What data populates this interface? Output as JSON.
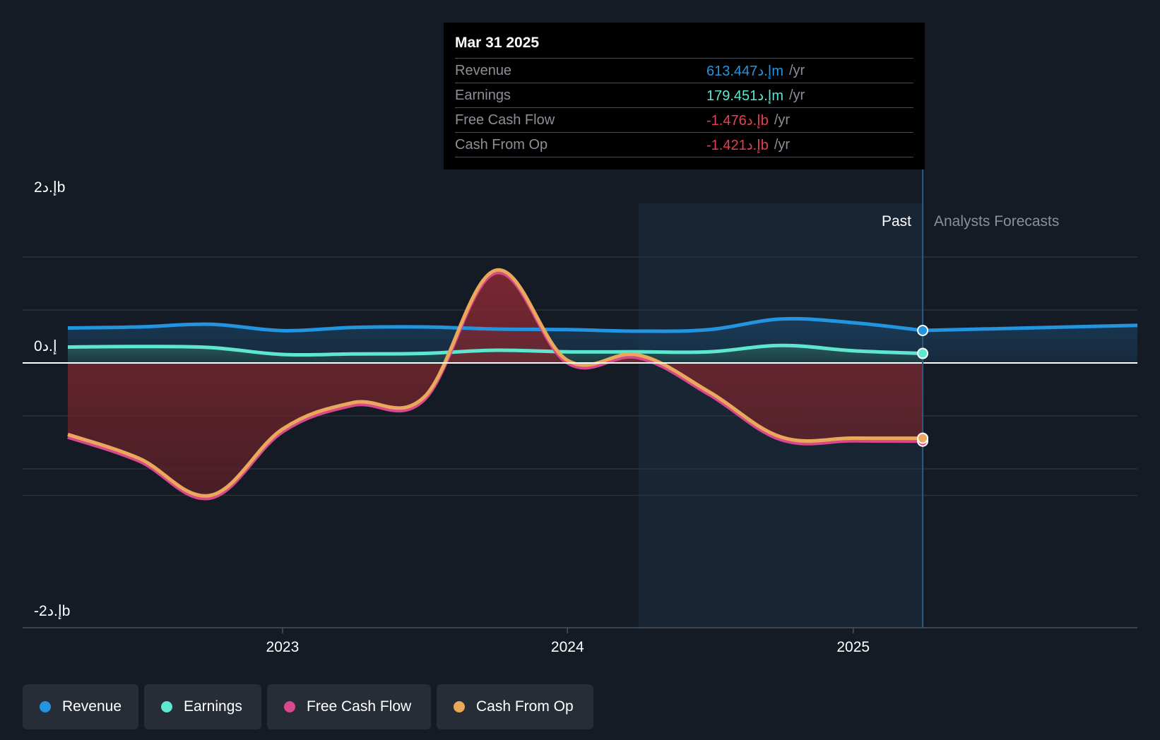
{
  "tooltip": {
    "date": "Mar 31 2025",
    "rows": [
      {
        "label": "Revenue",
        "value": "613.447إ.دm",
        "unit": "/yr",
        "color": "#2394df"
      },
      {
        "label": "Earnings",
        "value": "179.451إ.دm",
        "unit": "/yr",
        "color": "#5ee6d0"
      },
      {
        "label": "Free Cash Flow",
        "value": "-1.476إ.دb",
        "unit": "/yr",
        "color": "#e5404f"
      },
      {
        "label": "Cash From Op",
        "value": "-1.421إ.دb",
        "unit": "/yr",
        "color": "#e5404f"
      }
    ]
  },
  "chart_data": {
    "type": "line",
    "y_labels": {
      "top": "2إ.دb",
      "zero": "0إ.د",
      "bottom": "-2إ.دb"
    },
    "ylim": [
      -2.5,
      3.0
    ],
    "grid": true,
    "x_ticks": [
      "2023",
      "2024",
      "2025"
    ],
    "regions": {
      "past_label": "Past",
      "forecast_label": "Analysts Forecasts"
    },
    "series": [
      {
        "name": "Revenue",
        "color": "#2394df",
        "points": [
          [
            "2022-04-01",
            0.66
          ],
          [
            "2022-07-01",
            0.68
          ],
          [
            "2022-10-01",
            0.73
          ],
          [
            "2023-01-01",
            0.61
          ],
          [
            "2023-04-01",
            0.67
          ],
          [
            "2023-07-01",
            0.68
          ],
          [
            "2023-10-01",
            0.64
          ],
          [
            "2024-01-01",
            0.63
          ],
          [
            "2024-04-01",
            0.6
          ],
          [
            "2024-07-01",
            0.63
          ],
          [
            "2024-10-01",
            0.83
          ],
          [
            "2025-01-01",
            0.76
          ],
          [
            "2025-03-31",
            0.613447
          ]
        ],
        "forecast": [
          [
            "2025-03-31",
            0.613447
          ],
          [
            "2025-12-31",
            0.71
          ]
        ]
      },
      {
        "name": "Earnings",
        "color": "#5ee6d0",
        "points": [
          [
            "2022-04-01",
            0.3
          ],
          [
            "2022-07-01",
            0.31
          ],
          [
            "2022-10-01",
            0.29
          ],
          [
            "2023-01-01",
            0.16
          ],
          [
            "2023-04-01",
            0.17
          ],
          [
            "2023-07-01",
            0.18
          ],
          [
            "2023-10-01",
            0.24
          ],
          [
            "2024-01-01",
            0.21
          ],
          [
            "2024-04-01",
            0.21
          ],
          [
            "2024-07-01",
            0.21
          ],
          [
            "2024-10-01",
            0.33
          ],
          [
            "2025-01-01",
            0.23
          ],
          [
            "2025-03-31",
            0.179451
          ]
        ]
      },
      {
        "name": "Free Cash Flow",
        "color": "#d9478e",
        "points": [
          [
            "2022-04-01",
            -1.4
          ],
          [
            "2022-07-01",
            -1.85
          ],
          [
            "2022-10-01",
            -2.55
          ],
          [
            "2023-01-01",
            -1.3
          ],
          [
            "2023-04-01",
            -0.8
          ],
          [
            "2023-07-01",
            -0.7
          ],
          [
            "2023-10-01",
            1.7
          ],
          [
            "2024-01-01",
            0.0
          ],
          [
            "2024-04-01",
            0.1
          ],
          [
            "2024-07-01",
            -0.6
          ],
          [
            "2024-10-01",
            -1.45
          ],
          [
            "2025-01-01",
            -1.47
          ],
          [
            "2025-03-31",
            -1.476
          ]
        ]
      },
      {
        "name": "Cash From Op",
        "color": "#e9a85a",
        "points": [
          [
            "2022-04-01",
            -1.35
          ],
          [
            "2022-07-01",
            -1.8
          ],
          [
            "2022-10-01",
            -2.5
          ],
          [
            "2023-01-01",
            -1.25
          ],
          [
            "2023-04-01",
            -0.75
          ],
          [
            "2023-07-01",
            -0.65
          ],
          [
            "2023-10-01",
            1.75
          ],
          [
            "2024-01-01",
            0.05
          ],
          [
            "2024-04-01",
            0.15
          ],
          [
            "2024-07-01",
            -0.55
          ],
          [
            "2024-10-01",
            -1.4
          ],
          [
            "2025-01-01",
            -1.42
          ],
          [
            "2025-03-31",
            -1.421
          ]
        ]
      }
    ]
  },
  "legend": [
    {
      "label": "Revenue",
      "color": "#2394df"
    },
    {
      "label": "Earnings",
      "color": "#5ee6d0"
    },
    {
      "label": "Free Cash Flow",
      "color": "#d9478e"
    },
    {
      "label": "Cash From Op",
      "color": "#e9a85a"
    }
  ]
}
